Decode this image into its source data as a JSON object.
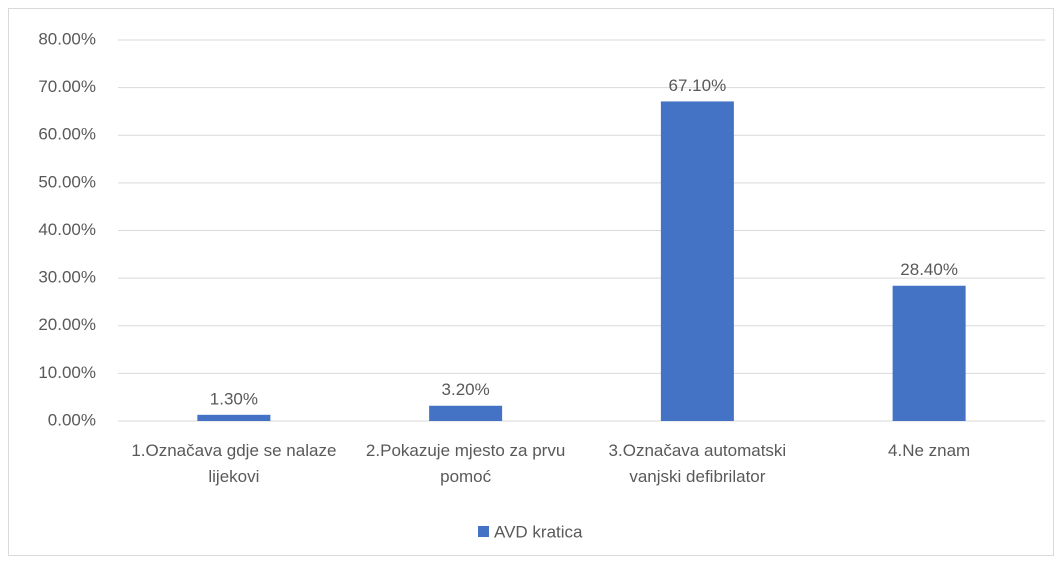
{
  "chart_data": {
    "type": "bar",
    "categories": [
      "1.Označava gdje se nalaze lijekovi",
      "2.Pokazuje mjesto za prvu pomoć",
      "3.Označava automatski vanjski defibrilator",
      "4.Ne znam"
    ],
    "series": [
      {
        "name": "AVD kratica",
        "color": "#4472c4",
        "values": [
          1.3,
          3.2,
          67.1,
          28.4
        ],
        "value_labels": [
          "1.30%",
          "3.20%",
          "67.10%",
          "28.40%"
        ]
      }
    ],
    "ylim": [
      0,
      80
    ],
    "yticks": [
      {
        "value": 0,
        "label": "0.00%"
      },
      {
        "value": 10,
        "label": "10.00%"
      },
      {
        "value": 20,
        "label": "20.00%"
      },
      {
        "value": 30,
        "label": "30.00%"
      },
      {
        "value": 40,
        "label": "40.00%"
      },
      {
        "value": 50,
        "label": "50.00%"
      },
      {
        "value": 60,
        "label": "60.00%"
      },
      {
        "value": 70,
        "label": "70.00%"
      },
      {
        "value": 80,
        "label": "80.00%"
      }
    ],
    "grid": true,
    "legend": "bottom"
  }
}
